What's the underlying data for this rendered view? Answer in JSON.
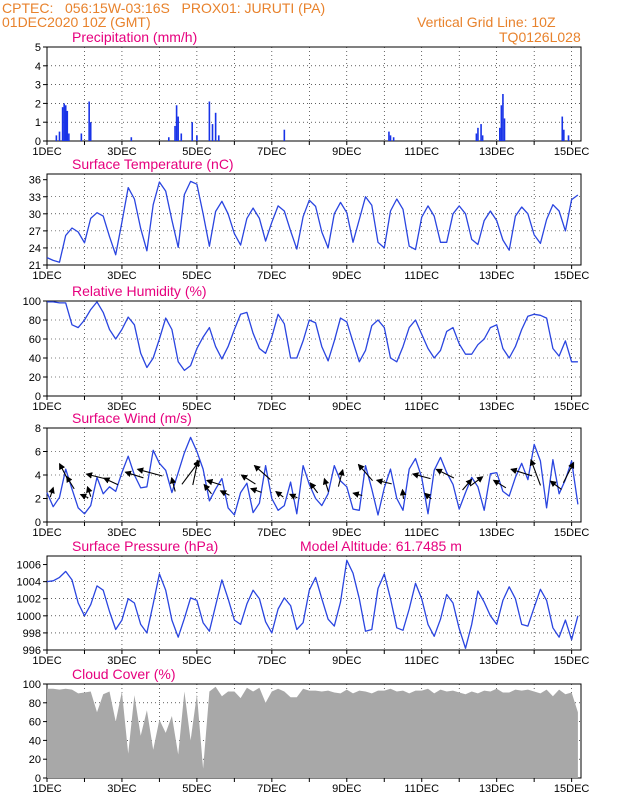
{
  "header": {
    "line1": "CPTEC:   056:15W-03:16S   PROX01: JURUTI (PA)",
    "line2": "01DEC2020 10Z (GMT)",
    "grid_note": "Vertical Grid Line: 10Z",
    "code": "TQ0126L028"
  },
  "colors": {
    "header": "#e8822c",
    "title": "#e6007e",
    "series": "#2a45e0",
    "precip": "#1833e8",
    "cloud": "#a8a8a8",
    "arrow": "#000000"
  },
  "x_tick_labels": [
    "1DEC",
    "3DEC",
    "5DEC",
    "7DEC",
    "9DEC",
    "11DEC",
    "13DEC",
    "15DEC"
  ],
  "chart_data": [
    {
      "type": "bar",
      "title": "Precipitation (mm/h)",
      "ylim": [
        0,
        5
      ],
      "yticks": [
        0,
        1,
        2,
        3,
        4,
        5
      ],
      "x_unit": "hours since 01DEC 10Z",
      "points": [
        [
          6,
          0.3
        ],
        [
          8,
          0.5
        ],
        [
          10,
          1.8
        ],
        [
          11,
          2.0
        ],
        [
          12,
          1.9
        ],
        [
          13,
          1.6
        ],
        [
          14,
          0.4
        ],
        [
          22,
          0.4
        ],
        [
          27,
          2.1
        ],
        [
          28,
          1.0
        ],
        [
          54,
          0.2
        ],
        [
          78,
          0.2
        ],
        [
          82,
          0.8
        ],
        [
          83,
          1.9
        ],
        [
          84,
          1.3
        ],
        [
          86,
          0.4
        ],
        [
          93,
          1.0
        ],
        [
          96,
          0.3
        ],
        [
          104,
          2.1
        ],
        [
          106,
          0.9
        ],
        [
          108,
          1.5
        ],
        [
          110,
          0.3
        ],
        [
          152,
          0.6
        ],
        [
          219,
          0.5
        ],
        [
          220,
          0.3
        ],
        [
          222,
          0.2
        ],
        [
          275,
          0.4
        ],
        [
          276,
          0.7
        ],
        [
          278,
          0.9
        ],
        [
          279,
          0.3
        ],
        [
          290,
          0.7
        ],
        [
          291,
          1.9
        ],
        [
          292,
          2.5
        ],
        [
          293,
          1.2
        ],
        [
          330,
          1.3
        ],
        [
          331,
          0.6
        ],
        [
          334,
          0.3
        ]
      ]
    },
    {
      "type": "line",
      "title": "Surface Temperature (nC)",
      "ylim": [
        21,
        37
      ],
      "yticks": [
        21,
        24,
        27,
        30,
        33,
        36
      ],
      "x": [
        0,
        4,
        8,
        12,
        16,
        20,
        24,
        28,
        32,
        36,
        40,
        44,
        48,
        52,
        56,
        60,
        64,
        68,
        72,
        76,
        80,
        84,
        88,
        92,
        96,
        100,
        104,
        108,
        112,
        116,
        120,
        124,
        128,
        132,
        136,
        140,
        144,
        148,
        152,
        156,
        160,
        164,
        168,
        172,
        176,
        180,
        184,
        188,
        192,
        196,
        200,
        204,
        208,
        212,
        216,
        220,
        224,
        228,
        232,
        236,
        240,
        244,
        248,
        252,
        256,
        260,
        264,
        268,
        272,
        276,
        280,
        284,
        288,
        292,
        296,
        300,
        304,
        308,
        312,
        316,
        320,
        324,
        328,
        332,
        336,
        340
      ],
      "values": [
        22.3,
        21.8,
        21.5,
        26.2,
        27.5,
        26.8,
        24.9,
        29.2,
        30.2,
        29.6,
        26.0,
        22.8,
        28.5,
        34.6,
        32.6,
        27.4,
        23.5,
        31.6,
        35.6,
        34.0,
        28.9,
        24.1,
        33.4,
        35.7,
        35.2,
        30.0,
        24.3,
        30.4,
        32.2,
        30.0,
        26.5,
        24.5,
        29.2,
        31.0,
        29.2,
        25.2,
        28.5,
        31.4,
        30.5,
        27.0,
        23.8,
        29.5,
        32.4,
        31.3,
        26.8,
        24.0,
        30.0,
        32.0,
        30.2,
        25.0,
        29.0,
        33.0,
        31.5,
        25.0,
        24.0,
        30.5,
        32.6,
        30.8,
        24.3,
        23.7,
        29.4,
        31.4,
        29.6,
        25.0,
        25.0,
        30.0,
        31.4,
        30.0,
        25.5,
        24.6,
        28.8,
        30.5,
        28.8,
        25.4,
        23.6,
        29.6,
        31.2,
        30.0,
        26.3,
        24.8,
        29.0,
        31.6,
        30.5,
        27.0,
        32.5,
        33.3
      ]
    },
    {
      "type": "line",
      "title": "Relative Humidity (%)",
      "ylim": [
        0,
        100
      ],
      "yticks": [
        0,
        20,
        40,
        60,
        80,
        100
      ],
      "x": [
        0,
        4,
        8,
        12,
        16,
        20,
        24,
        28,
        32,
        36,
        40,
        44,
        48,
        52,
        56,
        60,
        64,
        68,
        72,
        76,
        80,
        84,
        88,
        92,
        96,
        100,
        104,
        108,
        112,
        116,
        120,
        124,
        128,
        132,
        136,
        140,
        144,
        148,
        152,
        156,
        160,
        164,
        168,
        172,
        176,
        180,
        184,
        188,
        192,
        196,
        200,
        204,
        208,
        212,
        216,
        220,
        224,
        228,
        232,
        236,
        240,
        244,
        248,
        252,
        256,
        260,
        264,
        268,
        272,
        276,
        280,
        284,
        288,
        292,
        296,
        300,
        304,
        308,
        312,
        316,
        320,
        324,
        328,
        332,
        336,
        340
      ],
      "values": [
        99,
        99,
        98,
        98,
        75,
        72,
        80,
        91,
        99,
        88,
        70,
        60,
        70,
        83,
        75,
        45,
        30,
        40,
        60,
        82,
        70,
        36,
        27,
        32,
        50,
        62,
        72,
        52,
        39,
        52,
        70,
        86,
        88,
        66,
        50,
        45,
        62,
        86,
        76,
        40,
        40,
        58,
        80,
        77,
        52,
        37,
        58,
        82,
        78,
        57,
        36,
        48,
        74,
        80,
        72,
        40,
        36,
        52,
        72,
        80,
        65,
        50,
        40,
        48,
        68,
        72,
        55,
        44,
        44,
        54,
        60,
        72,
        75,
        50,
        40,
        52,
        70,
        84,
        86,
        85,
        82,
        50,
        42,
        58,
        36,
        36
      ]
    },
    {
      "type": "line",
      "title": "Surface Wind (m/s)",
      "ylim": [
        0,
        8
      ],
      "yticks": [
        0,
        2,
        4,
        6,
        8
      ],
      "x": [
        0,
        4,
        8,
        12,
        16,
        20,
        24,
        28,
        32,
        36,
        40,
        44,
        48,
        52,
        56,
        60,
        64,
        68,
        72,
        76,
        80,
        84,
        88,
        92,
        96,
        100,
        104,
        108,
        112,
        116,
        120,
        124,
        128,
        132,
        136,
        140,
        144,
        148,
        152,
        156,
        160,
        164,
        168,
        172,
        176,
        180,
        184,
        188,
        192,
        196,
        200,
        204,
        208,
        212,
        216,
        220,
        224,
        228,
        232,
        236,
        240,
        244,
        248,
        252,
        256,
        260,
        264,
        268,
        272,
        276,
        280,
        284,
        288,
        292,
        296,
        300,
        304,
        308,
        312,
        316,
        320,
        324,
        328,
        332,
        336,
        340
      ],
      "values": [
        2.5,
        1.3,
        2.1,
        4.5,
        2.8,
        1.2,
        0.7,
        1.4,
        3.8,
        2.4,
        3.0,
        2.6,
        4.2,
        5.6,
        4.0,
        2.9,
        3.0,
        6.1,
        5.0,
        4.4,
        2.5,
        4.2,
        5.9,
        7.2,
        6.0,
        4.5,
        1.8,
        2.8,
        3.7,
        1.2,
        0.6,
        2.5,
        3.3,
        0.8,
        1.6,
        4.8,
        2.0,
        1.0,
        1.4,
        3.4,
        0.7,
        4.8,
        3.2,
        2.0,
        1.4,
        2.4,
        4.8,
        3.5,
        3.0,
        1.1,
        1.0,
        4.8,
        2.8,
        0.6,
        2.9,
        4.5,
        2.0,
        1.0,
        4.5,
        5.4,
        3.8,
        0.7,
        4.4,
        5.5,
        4.2,
        3.2,
        1.1,
        2.5,
        3.8,
        3.0,
        1.0,
        4.1,
        4.2,
        2.6,
        2.2,
        3.8,
        5.0,
        3.6,
        6.6,
        5.2,
        1.2,
        5.3,
        2.4,
        3.6,
        5.2,
        1.5
      ],
      "arrows": [
        [
          3,
          0.3,
          0.93
        ],
        [
          11,
          -0.45,
          0.87
        ],
        [
          15,
          -0.5,
          0.82
        ],
        [
          24,
          -0.92,
          0.38
        ],
        [
          27,
          -0.32,
          0.94
        ],
        [
          31,
          -0.97,
          0.24
        ],
        [
          41,
          -0.9,
          0.42
        ],
        [
          56,
          -0.95,
          0.3
        ],
        [
          66,
          -0.97,
          0.26
        ],
        [
          81,
          -0.25,
          0.97
        ],
        [
          92,
          0.6,
          0.8
        ],
        [
          95,
          0.2,
          0.98
        ],
        [
          103,
          -0.62,
          0.78
        ],
        [
          107,
          -0.95,
          0.3
        ],
        [
          114,
          -0.9,
          0.45
        ],
        [
          129,
          -0.84,
          0.54
        ],
        [
          134,
          -0.94,
          0.34
        ],
        [
          138,
          -0.75,
          0.66
        ],
        [
          149,
          -0.8,
          0.6
        ],
        [
          158,
          -0.9,
          0.42
        ],
        [
          171,
          -0.6,
          0.8
        ],
        [
          179,
          -0.3,
          0.95
        ],
        [
          188,
          0.25,
          0.97
        ],
        [
          199,
          -0.97,
          0.25
        ],
        [
          204,
          -0.66,
          0.75
        ],
        [
          216,
          -0.97,
          0.24
        ],
        [
          228,
          -0.1,
          0.99
        ],
        [
          240,
          -0.97,
          0.25
        ],
        [
          244,
          -0.75,
          0.66
        ],
        [
          255,
          -0.9,
          0.44
        ],
        [
          269,
          0.65,
          0.76
        ],
        [
          275,
          0.8,
          0.6
        ],
        [
          290,
          -0.85,
          0.53
        ],
        [
          304,
          -0.95,
          0.3
        ],
        [
          313,
          -0.35,
          0.94
        ],
        [
          326,
          -0.8,
          0.6
        ],
        [
          334,
          0.45,
          0.89
        ]
      ]
    },
    {
      "type": "line",
      "title": "Surface Pressure (hPa)",
      "subtitle": "Model Altitude: 61.7485 m",
      "ylim": [
        996,
        1007
      ],
      "yticks": [
        996,
        998,
        1000,
        1002,
        1004,
        1006
      ],
      "x": [
        0,
        4,
        8,
        12,
        16,
        20,
        24,
        28,
        32,
        36,
        40,
        44,
        48,
        52,
        56,
        60,
        64,
        68,
        72,
        76,
        80,
        84,
        88,
        92,
        96,
        100,
        104,
        108,
        112,
        116,
        120,
        124,
        128,
        132,
        136,
        140,
        144,
        148,
        152,
        156,
        160,
        164,
        168,
        172,
        176,
        180,
        184,
        188,
        192,
        196,
        200,
        204,
        208,
        212,
        216,
        220,
        224,
        228,
        232,
        236,
        240,
        244,
        248,
        252,
        256,
        260,
        264,
        268,
        272,
        276,
        280,
        284,
        288,
        292,
        296,
        300,
        304,
        308,
        312,
        316,
        320,
        324,
        328,
        332,
        336,
        340
      ],
      "values": [
        1004.0,
        1004.1,
        1004.5,
        1005.2,
        1004.2,
        1001.5,
        1000.0,
        1001.3,
        1003.5,
        1003.0,
        1000.5,
        998.4,
        999.5,
        1002.0,
        1001.5,
        999.0,
        998.0,
        1001.4,
        1004.9,
        1003.0,
        999.5,
        997.5,
        999.7,
        1002.1,
        1001.8,
        999.2,
        998.2,
        1001.2,
        1004.2,
        1002.0,
        999.5,
        999.0,
        1001.4,
        1003.0,
        1002.0,
        999.3,
        998.0,
        1000.8,
        1002.1,
        1001.2,
        998.4,
        999.2,
        1003.0,
        1004.5,
        1002.0,
        999.6,
        998.8,
        1001.6,
        1006.5,
        1005.0,
        1002.0,
        998.2,
        998.4,
        1003.2,
        1004.9,
        1002.0,
        998.6,
        998.3,
        1000.8,
        1003.8,
        1002.0,
        999.0,
        997.6,
        999.6,
        1002.5,
        1001.5,
        998.5,
        996.2,
        999.0,
        1002.9,
        1001.6,
        1000.0,
        999.0,
        1001.8,
        1003.4,
        1002.0,
        999.0,
        998.8,
        1001.0,
        1003.1,
        1001.8,
        998.6,
        997.5,
        999.5,
        997.2,
        1000.0
      ]
    },
    {
      "type": "area",
      "title": "Cloud Cover (%)",
      "ylim": [
        0,
        100
      ],
      "yticks": [
        0,
        20,
        40,
        60,
        80,
        100
      ],
      "x": [
        0,
        4,
        8,
        12,
        16,
        20,
        24,
        28,
        32,
        36,
        40,
        44,
        48,
        52,
        56,
        60,
        64,
        68,
        72,
        76,
        80,
        84,
        88,
        92,
        96,
        100,
        104,
        108,
        112,
        116,
        120,
        124,
        128,
        132,
        136,
        140,
        144,
        148,
        152,
        156,
        160,
        164,
        168,
        172,
        176,
        180,
        184,
        188,
        192,
        196,
        200,
        204,
        208,
        212,
        216,
        220,
        224,
        228,
        232,
        236,
        240,
        244,
        248,
        252,
        256,
        260,
        264,
        268,
        272,
        276,
        280,
        284,
        288,
        292,
        296,
        300,
        304,
        308,
        312,
        316,
        320,
        324,
        328,
        332,
        336,
        340
      ],
      "values": [
        95,
        95,
        94,
        95,
        94,
        90,
        91,
        92,
        70,
        89,
        92,
        60,
        92,
        26,
        88,
        45,
        72,
        30,
        62,
        48,
        66,
        25,
        92,
        40,
        89,
        10,
        92,
        97,
        87,
        92,
        92,
        85,
        96,
        92,
        96,
        80,
        92,
        95,
        92,
        86,
        86,
        95,
        93,
        93,
        92,
        93,
        91,
        90,
        94,
        90,
        93,
        92,
        90,
        93,
        93,
        95,
        92,
        93,
        90,
        93,
        93,
        95,
        90,
        94,
        92,
        93,
        91,
        89,
        92,
        90,
        93,
        92,
        95,
        91,
        91,
        94,
        93,
        94,
        92,
        90,
        94,
        87,
        94,
        89,
        91,
        70
      ]
    }
  ]
}
